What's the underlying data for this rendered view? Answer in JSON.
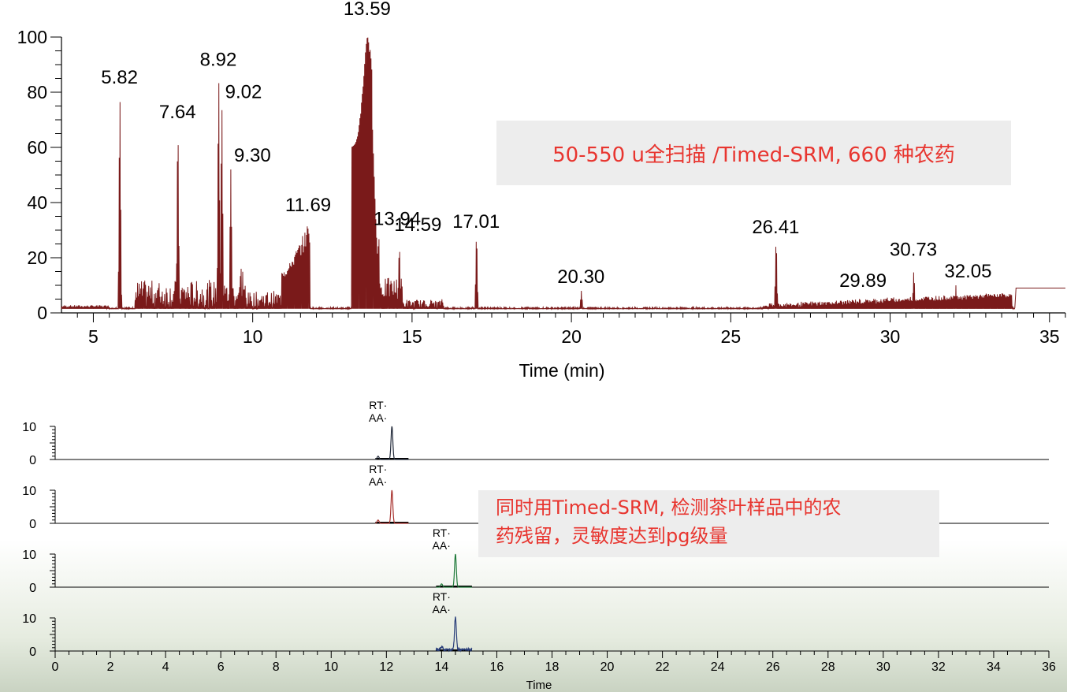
{
  "top_chart_note": "50-550 u全扫描 /Timed-SRM, 660 种农药",
  "bottom_chart_note": {
    "line1": "同时用Timed-SRM, 检测茶叶样品中的农",
    "line2": "药残留，灵敏度达到pg级量"
  },
  "colors": {
    "top_trace": "#7a1a1a",
    "panel1_trace": "#222a3a",
    "panel2_trace": "#a8322e",
    "panel3_trace": "#1f7a3a",
    "panel4_trace": "#2a3f7a",
    "note_text": "#e8352f",
    "note_bg": "#ededed"
  },
  "chart_data": [
    {
      "type": "line",
      "xlabel": "Time (min)",
      "ylabel": "",
      "xlim": [
        4,
        35.5
      ],
      "ylim": [
        0,
        100
      ],
      "x_ticks": [
        5,
        10,
        15,
        20,
        25,
        30,
        35
      ],
      "y_ticks": [
        0,
        20,
        40,
        60,
        80,
        100
      ],
      "baseline_level": 1.5,
      "peaks": [
        {
          "rt": 5.82,
          "height": 78,
          "label": "5.82"
        },
        {
          "rt": 7.64,
          "height": 66,
          "label": "7.64"
        },
        {
          "rt": 8.92,
          "height": 85,
          "label": "8.92"
        },
        {
          "rt": 9.02,
          "height": 75,
          "label": "9.02"
        },
        {
          "rt": 9.3,
          "height": 52,
          "label": "9.30"
        },
        {
          "rt": 11.69,
          "height": 34,
          "label": "11.69"
        },
        {
          "rt": 13.59,
          "height": 100,
          "label": "13.59"
        },
        {
          "rt": 13.94,
          "height": 29,
          "label": "13.94"
        },
        {
          "rt": 14.59,
          "height": 24,
          "label": "14.59"
        },
        {
          "rt": 17.01,
          "height": 28,
          "label": "17.01"
        },
        {
          "rt": 20.3,
          "height": 8,
          "label": "20.30"
        },
        {
          "rt": 26.41,
          "height": 26,
          "label": "26.41"
        },
        {
          "rt": 29.89,
          "height": 6,
          "label": "29.89"
        },
        {
          "rt": 30.73,
          "height": 15,
          "label": "30.73"
        },
        {
          "rt": 32.05,
          "height": 10,
          "label": "32.05"
        }
      ],
      "end_step_level": 9
    },
    {
      "type": "line",
      "xlabel": "Time",
      "ylabel": "",
      "xlim": [
        0,
        36
      ],
      "x_ticks": [
        0,
        2,
        4,
        6,
        8,
        10,
        12,
        14,
        16,
        18,
        20,
        22,
        24,
        26,
        28,
        30,
        32,
        34,
        36
      ],
      "panels": [
        {
          "labels": [
            "RT·",
            "AA·"
          ],
          "y_ticks": [
            0,
            10
          ],
          "ylim": [
            0,
            10
          ],
          "peak_rt": 12.2,
          "peak_height": 10,
          "window": [
            11.6,
            12.8
          ],
          "series_color_key": "panel1_trace"
        },
        {
          "labels": [
            "RT·",
            "AA·"
          ],
          "y_ticks": [
            0,
            10
          ],
          "ylim": [
            0,
            10
          ],
          "peak_rt": 12.2,
          "peak_height": 10,
          "window": [
            11.6,
            12.8
          ],
          "series_color_key": "panel2_trace"
        },
        {
          "labels": [
            "RT·",
            "AA·"
          ],
          "y_ticks": [
            0,
            10
          ],
          "ylim": [
            0,
            10
          ],
          "peak_rt": 14.5,
          "peak_height": 10,
          "window": [
            13.8,
            15.1
          ],
          "series_color_key": "panel3_trace"
        },
        {
          "labels": [
            "RT·",
            "AA·"
          ],
          "y_ticks": [
            0,
            10
          ],
          "ylim": [
            0,
            10
          ],
          "peak_rt": 14.5,
          "peak_height": 10,
          "window": [
            13.8,
            15.1
          ],
          "series_color_key": "panel4_trace"
        }
      ]
    }
  ]
}
